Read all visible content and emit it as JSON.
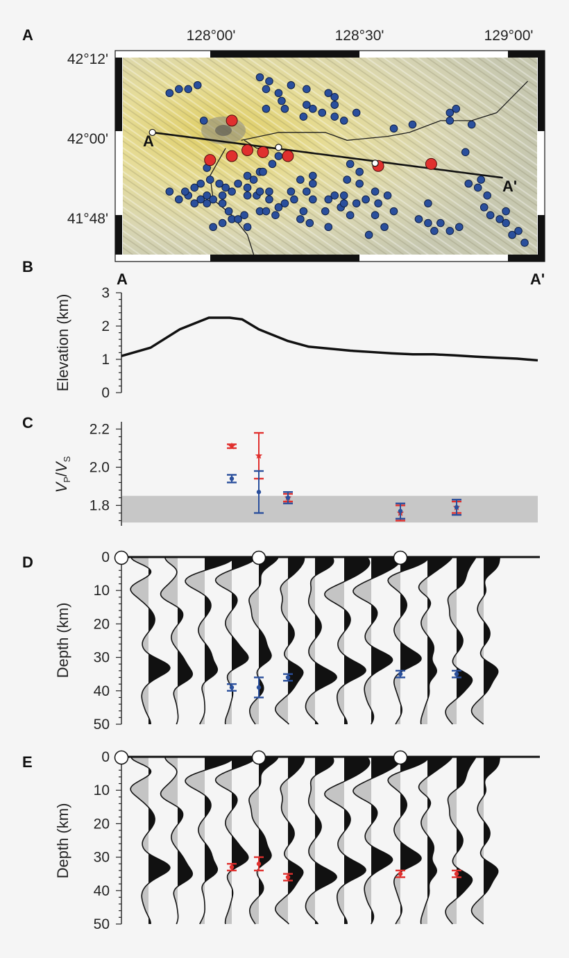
{
  "panels": [
    "A",
    "B",
    "C",
    "D",
    "E"
  ],
  "map": {
    "lon_labels": [
      "128°00'",
      "128°30'",
      "129°00'"
    ],
    "lat_labels": [
      "42°12'",
      "42°00'",
      "41°48'"
    ],
    "profile_start": "A",
    "profile_end": "A'",
    "lon_range": [
      127.7,
      129.03
    ],
    "lat_range": [
      41.72,
      42.22
    ],
    "colors": {
      "station": "#2a4f9c",
      "large_station": "#e0302e",
      "endpoint": "#ffffff"
    },
    "profile_line": [
      [
        127.795,
        42.03
      ],
      [
        128.92,
        41.915
      ]
    ],
    "large_stations": [
      [
        128.05,
        42.06
      ],
      [
        128.05,
        41.97
      ],
      [
        127.98,
        41.96
      ],
      [
        128.1,
        41.985
      ],
      [
        128.15,
        41.98
      ],
      [
        128.23,
        41.97
      ],
      [
        128.52,
        41.945
      ],
      [
        128.69,
        41.95
      ]
    ],
    "endpoint_markers": [
      [
        127.795,
        42.03
      ],
      [
        128.2,
        41.992
      ],
      [
        128.51,
        41.952
      ]
    ],
    "rivers": [
      [
        [
          128.08,
          42.01
        ],
        [
          128.2,
          42.03
        ],
        [
          128.35,
          42.03
        ],
        [
          128.42,
          42.01
        ],
        [
          128.55,
          42.02
        ],
        [
          128.62,
          42.03
        ],
        [
          128.72,
          42.06
        ],
        [
          128.82,
          42.06
        ],
        [
          128.9,
          42.08
        ],
        [
          128.95,
          42.12
        ],
        [
          129.0,
          42.16
        ]
      ],
      [
        [
          128.03,
          41.99
        ],
        [
          127.98,
          41.92
        ],
        [
          127.99,
          41.86
        ],
        [
          128.05,
          41.82
        ],
        [
          128.1,
          41.77
        ],
        [
          128.12,
          41.72
        ]
      ],
      [
        [
          128.09,
          42.01
        ],
        [
          128.13,
          41.99
        ],
        [
          128.2,
          41.99
        ]
      ]
    ],
    "stations": [
      [
        127.85,
        42.13
      ],
      [
        127.88,
        42.14
      ],
      [
        127.91,
        42.14
      ],
      [
        127.94,
        42.15
      ],
      [
        127.96,
        42.06
      ],
      [
        128.14,
        42.17
      ],
      [
        128.17,
        42.16
      ],
      [
        128.16,
        42.14
      ],
      [
        128.2,
        42.13
      ],
      [
        128.21,
        42.11
      ],
      [
        128.24,
        42.15
      ],
      [
        128.29,
        42.14
      ],
      [
        128.29,
        42.1
      ],
      [
        128.36,
        42.13
      ],
      [
        128.38,
        42.12
      ],
      [
        128.38,
        42.1
      ],
      [
        128.38,
        42.07
      ],
      [
        128.28,
        42.07
      ],
      [
        128.31,
        42.09
      ],
      [
        128.34,
        42.08
      ],
      [
        128.41,
        42.06
      ],
      [
        128.45,
        42.08
      ],
      [
        128.57,
        42.04
      ],
      [
        128.63,
        42.05
      ],
      [
        128.75,
        42.06
      ],
      [
        128.75,
        42.08
      ],
      [
        128.77,
        42.09
      ],
      [
        128.82,
        42.05
      ],
      [
        128.8,
        41.98
      ],
      [
        128.16,
        42.09
      ],
      [
        128.22,
        42.09
      ],
      [
        128.2,
        41.97
      ],
      [
        128.18,
        41.95
      ],
      [
        128.14,
        41.93
      ],
      [
        128.1,
        41.92
      ],
      [
        128.1,
        41.89
      ],
      [
        128.07,
        41.9
      ],
      [
        128.05,
        41.88
      ],
      [
        128.03,
        41.89
      ],
      [
        128.01,
        41.9
      ],
      [
        128.02,
        41.87
      ],
      [
        127.97,
        41.94
      ],
      [
        127.98,
        41.91
      ],
      [
        127.95,
        41.9
      ],
      [
        127.93,
        41.89
      ],
      [
        127.91,
        41.87
      ],
      [
        127.9,
        41.88
      ],
      [
        127.88,
        41.86
      ],
      [
        127.85,
        41.88
      ],
      [
        127.93,
        41.85
      ],
      [
        127.95,
        41.86
      ],
      [
        127.97,
        41.87
      ],
      [
        127.97,
        41.85
      ],
      [
        127.99,
        41.86
      ],
      [
        128.02,
        41.85
      ],
      [
        128.04,
        41.83
      ],
      [
        128.05,
        41.81
      ],
      [
        128.02,
        41.8
      ],
      [
        127.99,
        41.79
      ],
      [
        128.07,
        41.81
      ],
      [
        128.09,
        41.82
      ],
      [
        128.1,
        41.79
      ],
      [
        128.1,
        41.87
      ],
      [
        128.13,
        41.87
      ],
      [
        128.12,
        41.91
      ],
      [
        128.15,
        41.93
      ],
      [
        128.14,
        41.88
      ],
      [
        128.14,
        41.83
      ],
      [
        128.17,
        41.88
      ],
      [
        128.17,
        41.86
      ],
      [
        128.16,
        41.83
      ],
      [
        128.19,
        41.82
      ],
      [
        128.2,
        41.84
      ],
      [
        128.22,
        41.85
      ],
      [
        128.25,
        41.86
      ],
      [
        128.24,
        41.88
      ],
      [
        128.27,
        41.91
      ],
      [
        128.31,
        41.92
      ],
      [
        128.31,
        41.9
      ],
      [
        128.29,
        41.88
      ],
      [
        128.31,
        41.86
      ],
      [
        128.28,
        41.83
      ],
      [
        128.27,
        41.81
      ],
      [
        128.3,
        41.8
      ],
      [
        128.36,
        41.86
      ],
      [
        128.38,
        41.87
      ],
      [
        128.35,
        41.83
      ],
      [
        128.36,
        41.79
      ],
      [
        128.4,
        41.84
      ],
      [
        128.41,
        41.85
      ],
      [
        128.42,
        41.91
      ],
      [
        128.41,
        41.87
      ],
      [
        128.43,
        41.82
      ],
      [
        128.45,
        41.85
      ],
      [
        128.46,
        41.9
      ],
      [
        128.46,
        41.93
      ],
      [
        128.43,
        41.95
      ],
      [
        128.48,
        41.86
      ],
      [
        128.51,
        41.88
      ],
      [
        128.52,
        41.85
      ],
      [
        128.55,
        41.87
      ],
      [
        128.57,
        41.83
      ],
      [
        128.54,
        41.79
      ],
      [
        128.51,
        41.82
      ],
      [
        128.49,
        41.77
      ],
      [
        128.68,
        41.85
      ],
      [
        128.65,
        41.81
      ],
      [
        128.68,
        41.8
      ],
      [
        128.72,
        41.8
      ],
      [
        128.7,
        41.78
      ],
      [
        128.75,
        41.78
      ],
      [
        128.78,
        41.79
      ],
      [
        128.81,
        41.9
      ],
      [
        128.85,
        41.91
      ],
      [
        128.84,
        41.89
      ],
      [
        128.87,
        41.87
      ],
      [
        128.86,
        41.84
      ],
      [
        128.88,
        41.82
      ],
      [
        128.91,
        41.81
      ],
      [
        128.93,
        41.83
      ],
      [
        128.93,
        41.8
      ],
      [
        128.97,
        41.78
      ],
      [
        128.95,
        41.77
      ],
      [
        128.99,
        41.75
      ]
    ]
  },
  "chart_data": [
    {
      "panel": "B",
      "type": "line",
      "title": "",
      "xlabel": "",
      "ylabel": "Elevation (km)",
      "x_start_label": "A",
      "x_end_label": "A'",
      "x": [
        0,
        7,
        14,
        21,
        26,
        29,
        33,
        40,
        45,
        50,
        55,
        60,
        65,
        70,
        75,
        80,
        85,
        90,
        95,
        100
      ],
      "y": [
        1.1,
        1.35,
        1.9,
        2.25,
        2.25,
        2.2,
        1.9,
        1.55,
        1.38,
        1.32,
        1.26,
        1.22,
        1.18,
        1.15,
        1.15,
        1.12,
        1.08,
        1.05,
        1.02,
        0.97
      ],
      "xlim": [
        0,
        100
      ],
      "ylim": [
        0,
        3
      ],
      "yticks": [
        "0",
        "1",
        "2",
        "3"
      ],
      "color": "#111111"
    },
    {
      "panel": "C",
      "type": "scatter",
      "ylabel": "VP/VS",
      "ylabel_main": "V",
      "ylabel_sub1": "P",
      "ylabel_slash": "/",
      "ylabel_sub2": "S",
      "ylim": [
        1.7,
        2.22
      ],
      "yticks": [
        "1.8",
        "2.0",
        "2.2"
      ],
      "xlim": [
        0,
        100
      ],
      "reference_band": [
        1.71,
        1.85
      ],
      "series": [
        {
          "name": "red",
          "color": "#e0302e",
          "marker": "star",
          "x": [
            26.5,
            33,
            40,
            67,
            80.5
          ],
          "y": [
            2.11,
            2.06,
            1.84,
            1.76,
            1.79
          ],
          "err": [
            0.01,
            0.12,
            0.02,
            0.04,
            0.03
          ]
        },
        {
          "name": "blue",
          "color": "#2a4f9c",
          "marker": "dot",
          "x": [
            26.5,
            33,
            40,
            67,
            80.5
          ],
          "y": [
            1.94,
            1.87,
            1.84,
            1.77,
            1.79
          ],
          "err": [
            0.02,
            0.11,
            0.03,
            0.04,
            0.04
          ]
        }
      ]
    },
    {
      "panel": "D",
      "type": "line",
      "ylabel": "Depth (km)",
      "ylim": [
        0,
        50
      ],
      "yticks": [
        "0",
        "10",
        "20",
        "30",
        "40",
        "50"
      ],
      "trace_x": [
        6.5,
        13.5,
        20,
        26.5,
        33,
        40,
        46.5,
        53.5,
        60,
        67,
        73.5,
        80.5,
        87
      ],
      "circle_x": [
        0,
        33,
        67
      ],
      "markers": {
        "color": "#2a4f9c",
        "x": [
          26.5,
          33,
          40,
          67,
          80.5
        ],
        "depth": [
          39,
          39,
          36,
          35,
          35
        ],
        "err": [
          1,
          3,
          1,
          1,
          1
        ]
      }
    },
    {
      "panel": "E",
      "type": "line",
      "ylabel": "Depth (km)",
      "ylim": [
        0,
        50
      ],
      "yticks": [
        "0",
        "10",
        "20",
        "30",
        "40",
        "50"
      ],
      "trace_x": [
        6.5,
        13.5,
        20,
        26.5,
        33,
        40,
        46.5,
        53.5,
        60,
        67,
        73.5,
        80.5,
        87
      ],
      "circle_x": [
        0,
        33,
        67
      ],
      "markers": {
        "color": "#e0302e",
        "x": [
          26.5,
          33,
          40,
          67,
          80.5
        ],
        "depth": [
          33,
          32,
          36,
          35,
          35
        ],
        "err": [
          1,
          2,
          1,
          1,
          1
        ]
      }
    }
  ]
}
